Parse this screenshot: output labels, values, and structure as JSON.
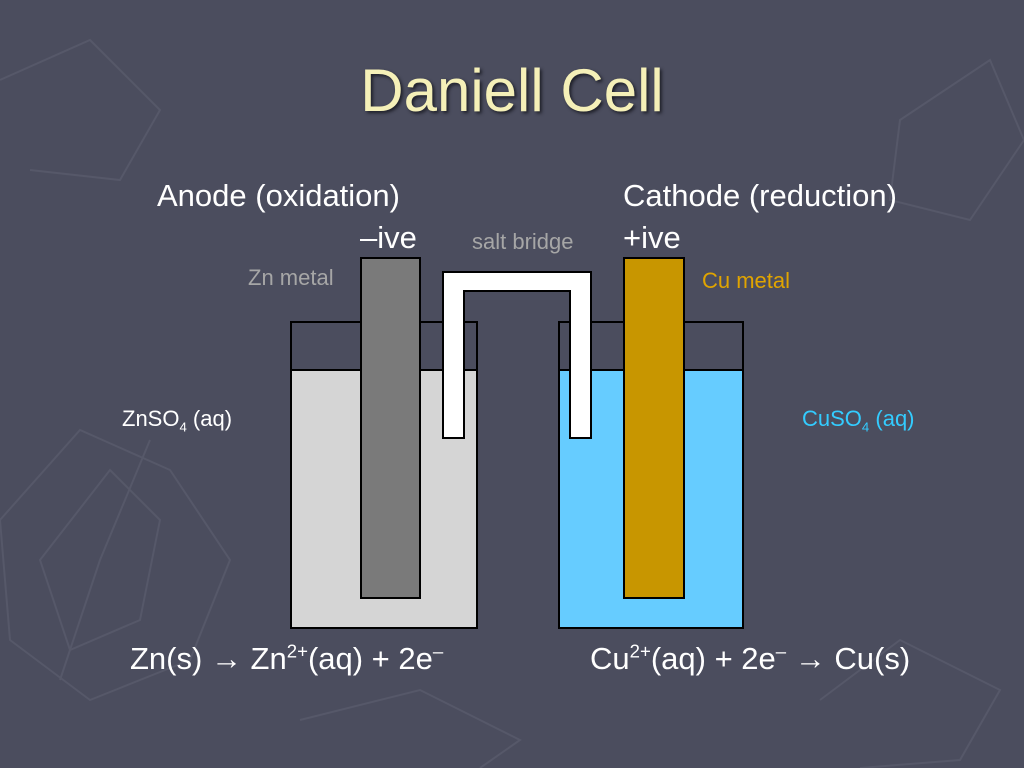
{
  "slide": {
    "title": "Daniell Cell"
  },
  "anode": {
    "heading": "Anode (oxidation)",
    "sign": "–ive",
    "electrode_label": "Zn metal",
    "solution_main": "ZnSO",
    "solution_sub": "4",
    "solution_tail": " (aq)",
    "equation": {
      "lhs": "Zn(s) ",
      "arrow": "→",
      "p1": " Zn",
      "p1_sup": "2+",
      "p2": "(aq) + 2e",
      "p2_sup": "–"
    }
  },
  "cathode": {
    "heading": "Cathode (reduction)",
    "sign": "+ive",
    "electrode_label": "Cu metal",
    "solution_main": "CuSO",
    "solution_sub": "4",
    "solution_tail": " (aq)",
    "equation": {
      "p1": "Cu",
      "p1_sup": "2+",
      "p2": "(aq) + 2e",
      "p2_sup": "–",
      "arrow": " → ",
      "rhs": "Cu(s)"
    }
  },
  "bridge": {
    "label": "salt bridge"
  },
  "colors": {
    "background": "#4b4d5e",
    "title": "#f5f0b8",
    "zn_solution": "#d5d5d5",
    "zn_electrode": "#7a7a7a",
    "cu_solution": "#66ccff",
    "cu_electrode": "#c89600",
    "cu_label": "#e0a400",
    "cuso4_label": "#33ccff",
    "muted_label": "#a6a6a6"
  }
}
